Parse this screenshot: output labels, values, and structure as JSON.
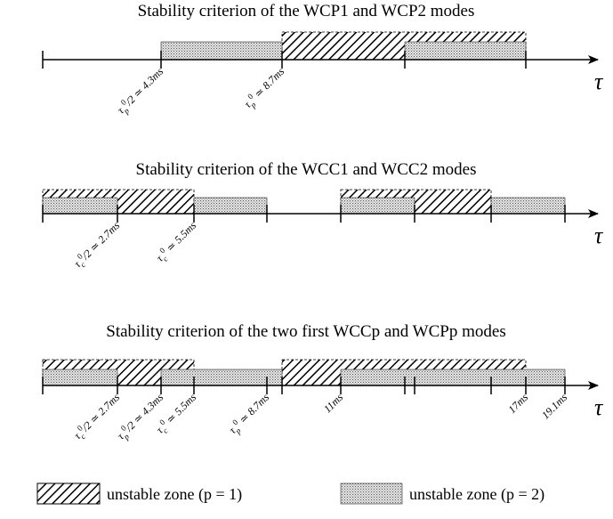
{
  "panels": [
    {
      "title": "Stability criterion of the WCP1 and WCP2 modes",
      "axis_label": "τ",
      "tick_labels": [
        {
          "symbol": "τ",
          "sub": "p",
          "sup": "0",
          "rest": "/2 ≃ 4.3ms"
        },
        {
          "symbol": "τ",
          "sub": "p",
          "sup": "0",
          "rest": " ≃ 8.7ms"
        }
      ]
    },
    {
      "title": "Stability criterion of the WCC1 and WCC2 modes",
      "axis_label": "τ",
      "tick_labels": [
        {
          "symbol": "τ",
          "sub": "c",
          "sup": "0",
          "rest": "/2 ≃ 2.7ms"
        },
        {
          "symbol": "τ",
          "sub": "c",
          "sup": "0",
          "rest": " ≃ 5.5ms"
        }
      ]
    },
    {
      "title": "Stability criterion of the two first WCCp and WCPp modes",
      "axis_label": "τ",
      "tick_labels": [
        {
          "symbol": "τ",
          "sub": "c",
          "sup": "0",
          "rest": "/2 ≃ 2.7ms"
        },
        {
          "symbol": "τ",
          "sub": "p",
          "sup": "0",
          "rest": "/2 ≃ 4.3ms"
        },
        {
          "symbol": "τ",
          "sub": "c",
          "sup": "0",
          "rest": " ≃ 5.5ms"
        },
        {
          "symbol": "τ",
          "sub": "p",
          "sup": "0",
          "rest": " ≃ 8.7ms"
        },
        {
          "rest": "11ms"
        },
        {
          "rest": "17ms"
        },
        {
          "rest": "19.1ms"
        }
      ]
    }
  ],
  "legend": [
    {
      "label": "unstable zone (p = 1)"
    },
    {
      "label": "unstable zone (p = 2)"
    }
  ]
}
